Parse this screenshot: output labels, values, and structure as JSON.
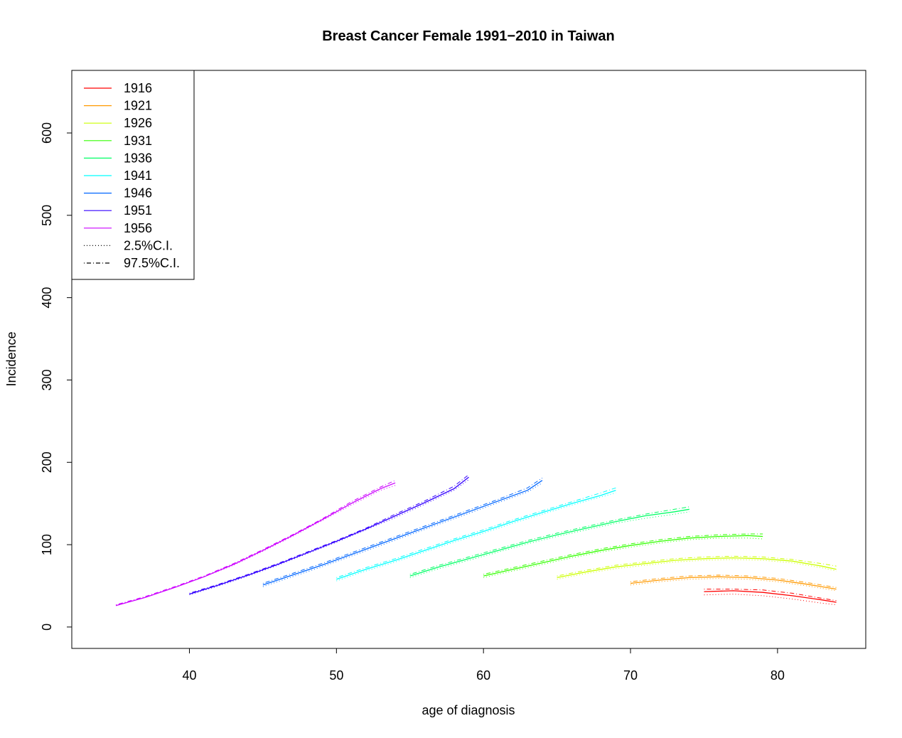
{
  "chart_data": {
    "type": "line",
    "title": "Breast Cancer Female 1991−2010 in Taiwan",
    "xlabel": "age of diagnosis",
    "ylabel": "Incidence",
    "xlim": [
      32,
      86
    ],
    "ylim": [
      -26,
      676
    ],
    "xticks": [
      40,
      50,
      60,
      70,
      80
    ],
    "yticks": [
      0,
      100,
      200,
      300,
      400,
      500,
      600
    ],
    "grid": false,
    "legend_position": "top-left",
    "legend": [
      {
        "label": "1916",
        "color": "#FF0000",
        "dash": "solid"
      },
      {
        "label": "1921",
        "color": "#FF9900",
        "dash": "solid"
      },
      {
        "label": "1926",
        "color": "#CCFF00",
        "dash": "solid"
      },
      {
        "label": "1931",
        "color": "#33FF00",
        "dash": "solid"
      },
      {
        "label": "1936",
        "color": "#00FF66",
        "dash": "solid"
      },
      {
        "label": "1941",
        "color": "#00FFFF",
        "dash": "solid"
      },
      {
        "label": "1946",
        "color": "#0066FF",
        "dash": "solid"
      },
      {
        "label": "1951",
        "color": "#3300FF",
        "dash": "solid"
      },
      {
        "label": "1956",
        "color": "#CC00FF",
        "dash": "solid"
      },
      {
        "label": "2.5%C.I.",
        "color": "#000000",
        "dash": "dotted"
      },
      {
        "label": "97.5%C.I.",
        "color": "#000000",
        "dash": "dotdash"
      }
    ],
    "series": [
      {
        "name": "1916",
        "color": "#FF0000",
        "x": [
          75,
          77,
          79,
          81,
          83,
          84
        ],
        "y": [
          43,
          44,
          42,
          38,
          33,
          30
        ],
        "lower": [
          39,
          40,
          38,
          34,
          29,
          27
        ],
        "upper": [
          46,
          46,
          45,
          41,
          35,
          32
        ]
      },
      {
        "name": "1921",
        "color": "#FF9900",
        "x": [
          70,
          72,
          74,
          76,
          78,
          80,
          82,
          84
        ],
        "y": [
          53,
          57,
          60,
          61,
          60,
          57,
          52,
          46
        ],
        "lower": [
          51,
          55,
          58,
          59,
          58,
          55,
          50,
          44
        ],
        "upper": [
          55,
          59,
          62,
          63,
          62,
          59,
          54,
          48
        ]
      },
      {
        "name": "1926",
        "color": "#CCFF00",
        "x": [
          65,
          67,
          69,
          71,
          73,
          75,
          77,
          79,
          81,
          83,
          84
        ],
        "y": [
          60,
          67,
          73,
          77,
          81,
          83,
          84,
          83,
          80,
          74,
          70
        ],
        "lower": [
          58,
          65,
          71,
          75,
          79,
          81,
          82,
          81,
          78,
          72,
          68
        ],
        "upper": [
          62,
          69,
          75,
          79,
          83,
          85,
          86,
          85,
          82,
          77,
          74
        ]
      },
      {
        "name": "1931",
        "color": "#33FF00",
        "x": [
          60,
          62,
          64,
          66,
          68,
          70,
          72,
          74,
          76,
          78,
          79
        ],
        "y": [
          62,
          70,
          78,
          86,
          93,
          99,
          104,
          108,
          110,
          111,
          110
        ],
        "lower": [
          60,
          68,
          76,
          84,
          91,
          97,
          102,
          106,
          108,
          108,
          107
        ],
        "upper": [
          64,
          72,
          80,
          88,
          95,
          101,
          106,
          110,
          112,
          113,
          113
        ]
      },
      {
        "name": "1936",
        "color": "#00FF66",
        "x": [
          55,
          57,
          59,
          61,
          63,
          65,
          67,
          69,
          71,
          73,
          74
        ],
        "y": [
          62,
          73,
          83,
          93,
          103,
          112,
          120,
          128,
          135,
          140,
          143
        ],
        "lower": [
          60,
          71,
          81,
          91,
          101,
          110,
          118,
          126,
          132,
          137,
          140
        ],
        "upper": [
          64,
          75,
          85,
          95,
          105,
          114,
          122,
          130,
          137,
          143,
          146
        ]
      },
      {
        "name": "1941",
        "color": "#00FFFF",
        "x": [
          50,
          52,
          54,
          56,
          58,
          60,
          62,
          64,
          66,
          68,
          69
        ],
        "y": [
          58,
          70,
          81,
          93,
          105,
          116,
          128,
          139,
          150,
          160,
          166
        ],
        "lower": [
          56,
          68,
          79,
          91,
          103,
          114,
          126,
          137,
          148,
          158,
          163
        ],
        "upper": [
          60,
          72,
          83,
          95,
          107,
          118,
          130,
          141,
          152,
          163,
          169
        ]
      },
      {
        "name": "1946",
        "color": "#0066FF",
        "x": [
          45,
          47,
          49,
          51,
          53,
          55,
          57,
          59,
          61,
          63,
          64
        ],
        "y": [
          51,
          63,
          75,
          88,
          101,
          114,
          127,
          140,
          153,
          166,
          178
        ],
        "lower": [
          49,
          61,
          73,
          86,
          99,
          112,
          125,
          138,
          151,
          164,
          175
        ],
        "upper": [
          53,
          65,
          77,
          90,
          103,
          116,
          129,
          142,
          155,
          169,
          181
        ]
      },
      {
        "name": "1951",
        "color": "#3300FF",
        "x": [
          40,
          42,
          44,
          46,
          48,
          50,
          52,
          54,
          56,
          58,
          59
        ],
        "y": [
          40,
          51,
          63,
          76,
          90,
          104,
          119,
          135,
          151,
          168,
          182
        ],
        "lower": [
          39,
          50,
          62,
          75,
          89,
          103,
          118,
          133,
          149,
          166,
          179
        ],
        "upper": [
          41,
          52,
          64,
          77,
          91,
          105,
          120,
          137,
          153,
          171,
          185
        ]
      },
      {
        "name": "1956",
        "color": "#CC00FF",
        "x": [
          35,
          37,
          39,
          41,
          43,
          45,
          47,
          49,
          51,
          53,
          54
        ],
        "y": [
          26,
          36,
          48,
          61,
          76,
          93,
          111,
          130,
          150,
          168,
          175
        ],
        "lower": [
          26,
          36,
          48,
          61,
          75,
          92,
          110,
          129,
          148,
          166,
          172
        ],
        "upper": [
          27,
          37,
          49,
          62,
          77,
          94,
          112,
          131,
          152,
          170,
          178
        ]
      }
    ]
  }
}
